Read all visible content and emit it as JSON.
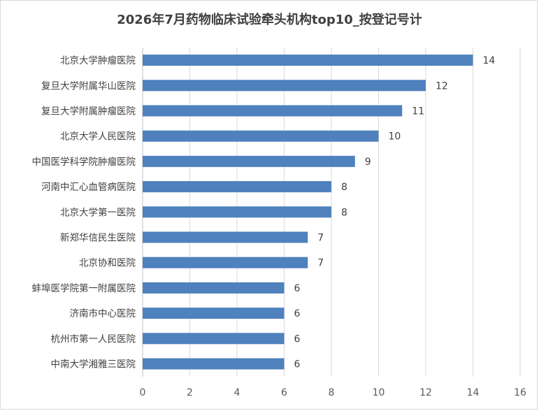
{
  "chart_data": {
    "type": "bar",
    "orientation": "horizontal",
    "title": "2026年7月药物临床试验牵头机构top10_按登记号计",
    "categories": [
      "北京大学肿瘤医院",
      "复旦大学附属华山医院",
      "复旦大学附属肿瘤医院",
      "北京大学人民医院",
      "中国医学科学院肿瘤医院",
      "河南中汇心血管病医院",
      "北京大学第一医院",
      "新郑华信民生医院",
      "北京协和医院",
      "蚌埠医学院第一附属医院",
      "济南市中心医院",
      "杭州市第一人民医院",
      "中南大学湘雅三医院"
    ],
    "values": [
      14,
      12,
      11,
      10,
      9,
      8,
      8,
      7,
      7,
      6,
      6,
      6,
      6
    ],
    "xlim": [
      0,
      16
    ],
    "xticks": [
      0,
      2,
      4,
      6,
      8,
      10,
      12,
      14,
      16
    ],
    "grid": true,
    "legend": "none",
    "bar_color": "#4f81bd",
    "grid_color": "#d9d9d9"
  }
}
